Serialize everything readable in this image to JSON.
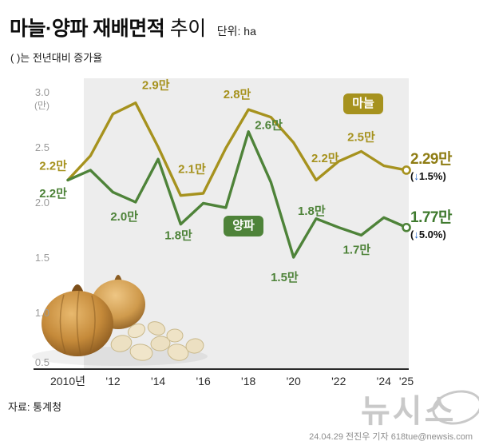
{
  "header": {
    "title_main": "마늘·양파 재배면적",
    "title_sub": "추이",
    "unit_label": "단위: ha",
    "subtitle": "( )는 전년대비 증가율"
  },
  "chart_data": {
    "type": "line",
    "title": "마늘·양파 재배면적 추이",
    "unit": "ha",
    "note": "( )는 전년대비 증가율",
    "ylabel": "(만)",
    "ylim": [
      0.5,
      3.0
    ],
    "yticks": [
      3.0,
      2.5,
      2.0,
      1.5,
      1.0,
      0.5
    ],
    "x": [
      2010,
      2011,
      2012,
      2013,
      2014,
      2015,
      2016,
      2017,
      2018,
      2019,
      2020,
      2021,
      2022,
      2023,
      2024,
      2025
    ],
    "xticks": [
      {
        "year": 2010,
        "label": "2010년"
      },
      {
        "year": 2012,
        "label": "'12"
      },
      {
        "year": 2014,
        "label": "'14"
      },
      {
        "year": 2016,
        "label": "'16"
      },
      {
        "year": 2018,
        "label": "'18"
      },
      {
        "year": 2020,
        "label": "'20"
      },
      {
        "year": 2022,
        "label": "'22"
      },
      {
        "year": 2024,
        "label": "'24"
      },
      {
        "year": 2025,
        "label": "'25"
      }
    ],
    "series": [
      {
        "id": "garlic",
        "name": "마늘",
        "color": "#a6921e",
        "values": [
          2.2,
          2.42,
          2.8,
          2.9,
          2.5,
          2.06,
          2.08,
          2.49,
          2.84,
          2.77,
          2.54,
          2.2,
          2.37,
          2.46,
          2.33,
          2.29
        ],
        "end_value": "2.29만",
        "change_prefix": "(",
        "change_arrow": "↓",
        "change_rest": "1.5%)"
      },
      {
        "id": "onion",
        "name": "양파",
        "color": "#4e8339",
        "values": [
          2.2,
          2.29,
          2.09,
          2.0,
          2.39,
          1.8,
          1.99,
          1.95,
          2.64,
          2.18,
          1.5,
          1.85,
          1.77,
          1.7,
          1.86,
          1.77
        ],
        "end_value": "1.77만",
        "change_prefix": "(",
        "change_arrow": "↓",
        "change_rest": "5.0%)"
      }
    ],
    "point_labels": [
      {
        "series": "garlic",
        "text": "2.2만",
        "year": 2009.35,
        "v": 2.33
      },
      {
        "series": "garlic",
        "text": "2.9만",
        "year": 2013.9,
        "v": 3.06
      },
      {
        "series": "garlic",
        "text": "2.1만",
        "year": 2015.5,
        "v": 2.3
      },
      {
        "series": "garlic",
        "text": "2.8만",
        "year": 2017.5,
        "v": 2.98
      },
      {
        "series": "garlic",
        "text": "2.2만",
        "year": 2021.4,
        "v": 2.4
      },
      {
        "series": "garlic",
        "text": "2.5만",
        "year": 2023.0,
        "v": 2.59
      },
      {
        "series": "onion",
        "text": "2.2만",
        "year": 2009.35,
        "v": 2.08
      },
      {
        "series": "onion",
        "text": "2.0만",
        "year": 2012.5,
        "v": 1.87
      },
      {
        "series": "onion",
        "text": "1.8만",
        "year": 2014.9,
        "v": 1.7
      },
      {
        "series": "onion",
        "text": "2.6만",
        "year": 2018.9,
        "v": 2.7
      },
      {
        "series": "onion",
        "text": "1.5만",
        "year": 2019.6,
        "v": 1.32
      },
      {
        "series": "onion",
        "text": "1.8만",
        "year": 2020.8,
        "v": 1.92
      },
      {
        "series": "onion",
        "text": "1.7만",
        "year": 2022.8,
        "v": 1.57
      }
    ],
    "legend_position": "inline-badges",
    "grid": false
  },
  "footer": {
    "source": "자료: 통계청",
    "watermark": "뉴시스",
    "credit": "24.04.29 전진우 기자 618tue@newsis.com"
  }
}
